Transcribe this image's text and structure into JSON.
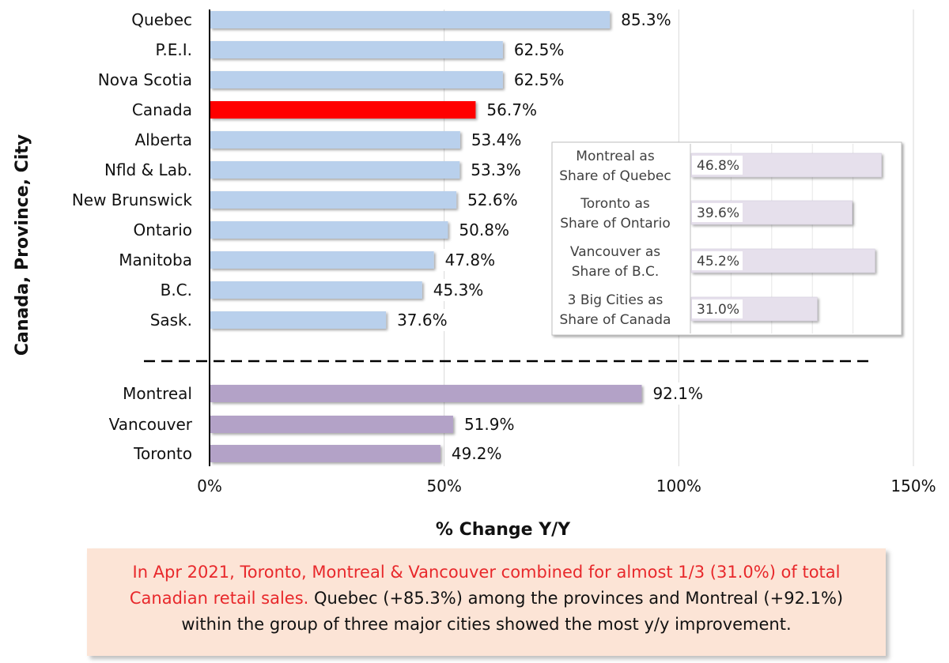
{
  "chart_data": [
    {
      "type": "bar",
      "orientation": "horizontal",
      "xlabel": "% Change Y/Y",
      "ylabel": "Canada, Province, City",
      "xlim": [
        0,
        150
      ],
      "x_ticks": [
        "0%",
        "50%",
        "100%",
        "150%"
      ],
      "grid": "vertical",
      "groups": [
        {
          "name": "provinces",
          "categories": [
            "Quebec",
            "P.E.I.",
            "Nova Scotia",
            "Canada",
            "Alberta",
            "Nfld & Lab.",
            "New Brunswick",
            "Ontario",
            "Manitoba",
            "B.C.",
            "Sask."
          ],
          "values": [
            85.3,
            62.5,
            62.5,
            56.7,
            53.4,
            53.3,
            52.6,
            50.8,
            47.8,
            45.3,
            37.6
          ],
          "labels": [
            "85.3%",
            "62.5%",
            "62.5%",
            "56.7%",
            "53.4%",
            "53.3%",
            "52.6%",
            "50.8%",
            "47.8%",
            "45.3%",
            "37.6%"
          ],
          "color": "#b9d0ec",
          "highlight": {
            "category": "Canada",
            "color": "#ff0000"
          }
        },
        {
          "name": "cities",
          "categories": [
            "Montreal",
            "Vancouver",
            "Toronto"
          ],
          "values": [
            92.1,
            51.9,
            49.2
          ],
          "labels": [
            "92.1%",
            "51.9%",
            "49.2%"
          ],
          "color": "#b3a2c7"
        }
      ]
    },
    {
      "type": "bar",
      "orientation": "horizontal",
      "inset": true,
      "categories": [
        [
          "Montreal as",
          "Share of Quebec"
        ],
        [
          "Toronto as",
          "Share of Ontario"
        ],
        [
          "Vancouver as",
          "Share of B.C."
        ],
        [
          "3 Big Cities as",
          "Share of Canada"
        ]
      ],
      "values": [
        46.8,
        39.6,
        45.2,
        31.0
      ],
      "labels": [
        "46.8%",
        "39.6%",
        "45.2%",
        "31.0%"
      ],
      "color": "#e6e0ec"
    }
  ],
  "note": {
    "red_text": "In Apr 2021, Toronto, Montreal & Vancouver combined for almost 1/3 (31.0%) of total Canadian retail sales.",
    "black_text": " Quebec (+85.3%) among the provinces and Montreal (+92.1%) within the group of three major cities showed the most y/y improvement."
  },
  "colors": {
    "province_bar": "#b9d0ec",
    "canada_bar": "#ff0000",
    "city_bar": "#b3a2c7",
    "inset_bar": "#e6e0ec",
    "note_background": "#fce4d6",
    "note_red_text": "#e8282b"
  }
}
